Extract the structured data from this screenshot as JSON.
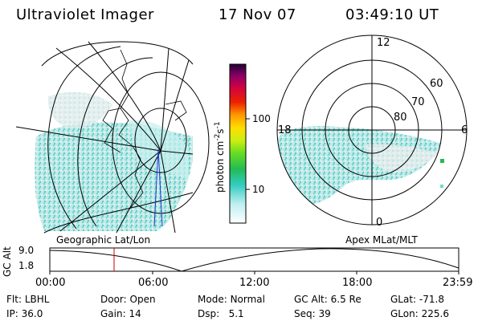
{
  "header": {
    "instrument": "Ultraviolet Imager",
    "date": "17 Nov 07",
    "time": "03:49:10 UT"
  },
  "colorbar": {
    "unit_label": "photon cm",
    "unit_exp1": "-2",
    "unit_s": "s",
    "unit_exp2": "-1",
    "ticks": [
      "100",
      "10"
    ]
  },
  "polar": {
    "mlt_labels": [
      "12",
      "18",
      "6",
      "0"
    ],
    "lat_labels": [
      "60",
      "70",
      "80"
    ]
  },
  "panel_labels": {
    "left": "Geographic Lat/Lon",
    "right": "Apex MLat/MLT"
  },
  "orbit": {
    "axis_label": "GC Alt",
    "y_ticks": [
      "9.0",
      "1.8"
    ],
    "x_ticks": [
      "00:00",
      "06:00",
      "12:00",
      "18:00",
      "23:59"
    ],
    "marker_color": "#cc0000"
  },
  "status": {
    "row1": [
      {
        "key": "Flt:",
        "value": "LBHL"
      },
      {
        "key": "Door:",
        "value": "Open"
      },
      {
        "key": "Mode:",
        "value": "Normal"
      },
      {
        "key": "GC Alt:",
        "value": "6.5 Re"
      },
      {
        "key": "GLat:",
        "value": "-71.8"
      }
    ],
    "row2": [
      {
        "key": "IP:",
        "value": "36.0"
      },
      {
        "key": "Gain:",
        "value": "14"
      },
      {
        "key": "Dsp:",
        "value": "5.1"
      },
      {
        "key": "Seq:",
        "value": "39"
      },
      {
        "key": "GLon:",
        "value": "225.6"
      }
    ]
  }
}
